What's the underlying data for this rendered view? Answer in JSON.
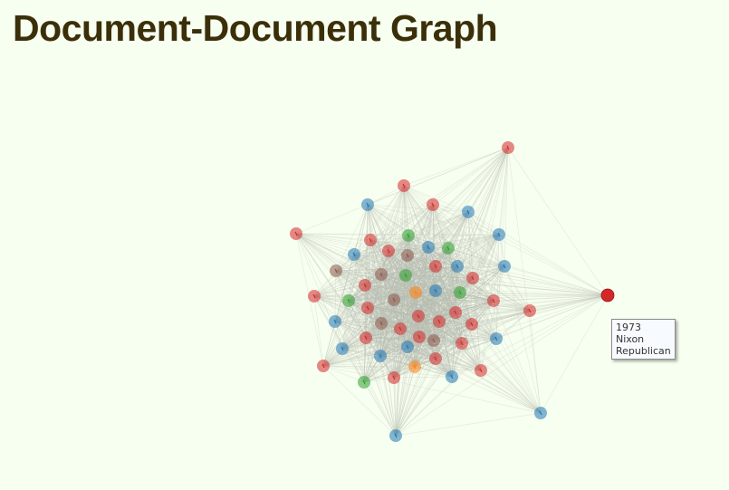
{
  "page": {
    "title": "Document-Document Graph"
  },
  "tooltip": {
    "year": "1973",
    "president": "Nixon",
    "party": "Republican"
  },
  "colors": {
    "republican": "#d62728",
    "democrat": "#1f77b4",
    "whig": "#2ca02c",
    "federalist": "#ff7f0e",
    "other": "#8c564b",
    "edge": "#b7bcb0",
    "selected": "#d62728"
  },
  "graph": {
    "nodes": [
      {
        "id": "n1",
        "group": "republican"
      },
      {
        "id": "n2",
        "group": "republican"
      },
      {
        "id": "n3",
        "group": "republican"
      },
      {
        "id": "n4",
        "group": "democrat"
      },
      {
        "id": "n5",
        "group": "democrat"
      },
      {
        "id": "n6",
        "group": "republican"
      },
      {
        "id": "n7",
        "group": "democrat"
      },
      {
        "id": "n8",
        "group": "republican"
      },
      {
        "id": "n9",
        "group": "whig"
      },
      {
        "id": "n10",
        "group": "democrat"
      },
      {
        "id": "n11",
        "group": "whig"
      },
      {
        "id": "n12",
        "group": "other"
      },
      {
        "id": "n13",
        "group": "republican"
      },
      {
        "id": "n14",
        "group": "democrat"
      },
      {
        "id": "n15",
        "group": "other"
      },
      {
        "id": "n16",
        "group": "other"
      },
      {
        "id": "n17",
        "group": "whig"
      },
      {
        "id": "n18",
        "group": "republican"
      },
      {
        "id": "n19",
        "group": "democrat"
      },
      {
        "id": "n20",
        "group": "republican"
      },
      {
        "id": "n21",
        "group": "democrat"
      },
      {
        "id": "n22",
        "group": "republican"
      },
      {
        "id": "n23",
        "group": "whig"
      },
      {
        "id": "n24",
        "group": "federalist"
      },
      {
        "id": "n25",
        "group": "democrat"
      },
      {
        "id": "n26",
        "group": "whig"
      },
      {
        "id": "n27",
        "group": "republican"
      },
      {
        "id": "n28",
        "group": "republican"
      },
      {
        "id": "n29",
        "group": "republican"
      },
      {
        "id": "n30",
        "group": "other"
      },
      {
        "id": "n31",
        "group": "republican"
      },
      {
        "id": "n32",
        "group": "republican"
      },
      {
        "id": "n33",
        "group": "republican"
      },
      {
        "id": "n34",
        "group": "republican"
      },
      {
        "id": "n35",
        "group": "democrat"
      },
      {
        "id": "n36",
        "group": "other"
      },
      {
        "id": "n37",
        "group": "republican"
      },
      {
        "id": "n38",
        "group": "republican"
      },
      {
        "id": "n39",
        "group": "republican"
      },
      {
        "id": "n40",
        "group": "democrat"
      },
      {
        "id": "n41",
        "group": "republican"
      },
      {
        "id": "n42",
        "group": "democrat"
      },
      {
        "id": "n43",
        "group": "other"
      },
      {
        "id": "n44",
        "group": "democrat"
      },
      {
        "id": "n45",
        "group": "democrat"
      },
      {
        "id": "n46",
        "group": "republican"
      },
      {
        "id": "n47",
        "group": "republican"
      },
      {
        "id": "n48",
        "group": "federalist"
      },
      {
        "id": "n49",
        "group": "democrat"
      },
      {
        "id": "n50",
        "group": "republican"
      },
      {
        "id": "n51",
        "group": "whig"
      },
      {
        "id": "n52",
        "group": "republican"
      },
      {
        "id": "n53",
        "group": "republican"
      },
      {
        "id": "n54",
        "group": "democrat"
      },
      {
        "id": "n55",
        "group": "democrat"
      },
      {
        "id": "n56",
        "group": "republican",
        "selected": true
      }
    ]
  }
}
